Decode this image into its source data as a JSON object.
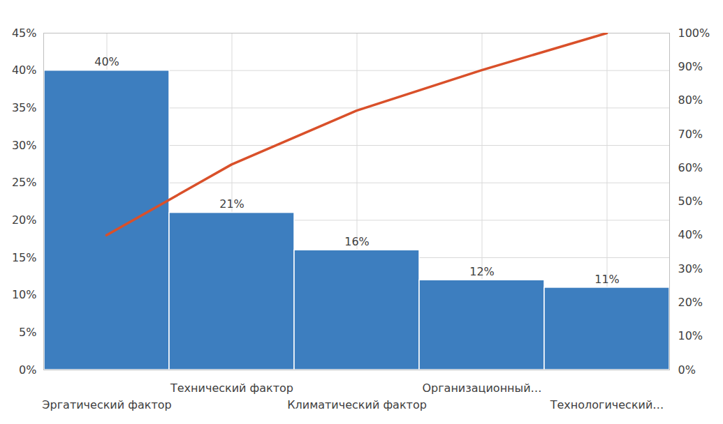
{
  "chart_data": {
    "type": "bar",
    "categories": [
      "Эргатический фактор",
      "Технический фактор",
      "Климатический фактор",
      "Организационный…",
      "Технологический…"
    ],
    "series": [
      {
        "type": "bar",
        "color": "#3d7ebf",
        "values": [
          40,
          21,
          16,
          12,
          11
        ],
        "value_labels": [
          "40%",
          "21%",
          "16%",
          "12%",
          "11%"
        ]
      },
      {
        "type": "line",
        "axis": "y2",
        "color": "#d9502a",
        "line_style": "solid",
        "values": [
          40,
          61,
          77,
          89,
          100
        ]
      }
    ],
    "data_labels": true,
    "grid": true,
    "ylim": [
      0,
      45
    ],
    "yticks": [
      {
        "value": 0,
        "label": "0%"
      },
      {
        "value": 5,
        "label": "5%"
      },
      {
        "value": 10,
        "label": "10%"
      },
      {
        "value": 15,
        "label": "15%"
      },
      {
        "value": 20,
        "label": "20%"
      },
      {
        "value": 25,
        "label": "25%"
      },
      {
        "value": 30,
        "label": "30%"
      },
      {
        "value": 35,
        "label": "35%"
      },
      {
        "value": 40,
        "label": "40%"
      },
      {
        "value": 45,
        "label": "45%"
      }
    ],
    "y2lim": [
      0,
      100
    ],
    "y2ticks": [
      {
        "value": 0,
        "label": "0%"
      },
      {
        "value": 10,
        "label": "10%"
      },
      {
        "value": 20,
        "label": "20%"
      },
      {
        "value": 30,
        "label": "30%"
      },
      {
        "value": 40,
        "label": "40%"
      },
      {
        "value": 50,
        "label": "50%"
      },
      {
        "value": 60,
        "label": "60%"
      },
      {
        "value": 70,
        "label": "70%"
      },
      {
        "value": 80,
        "label": "80%"
      },
      {
        "value": 90,
        "label": "90%"
      },
      {
        "value": 100,
        "label": "100%"
      }
    ]
  }
}
